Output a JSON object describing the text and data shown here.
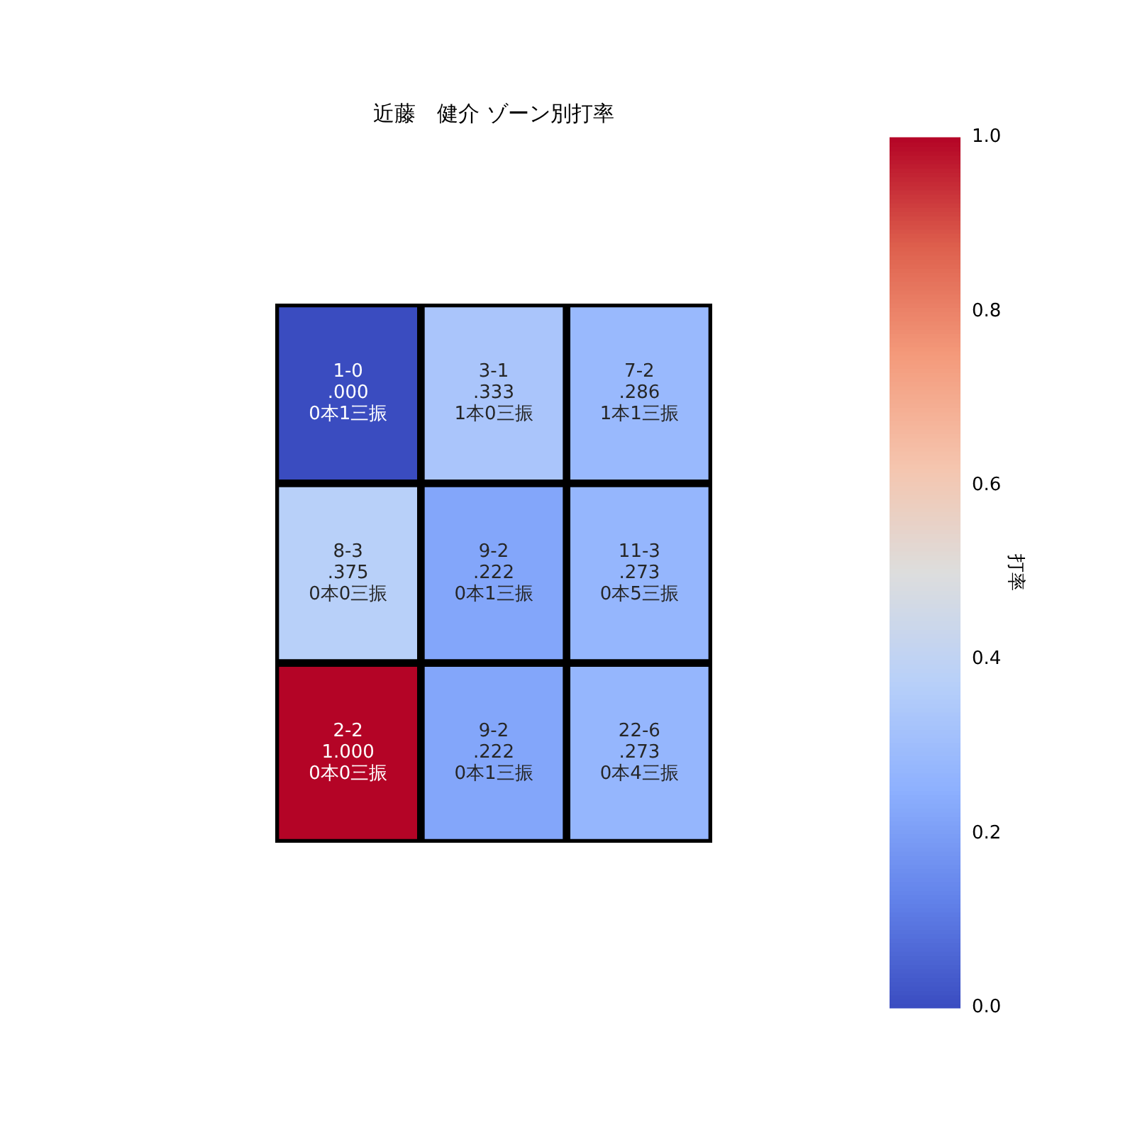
{
  "chart_data": {
    "type": "heatmap",
    "title": "近藤　健介 ゾーン別打率",
    "categories": [
      null,
      null,
      null
    ],
    "y_categories": [
      null,
      null,
      null
    ],
    "cells": [
      [
        0.0,
        0.333,
        0.286
      ],
      [
        0.375,
        0.222,
        0.273
      ],
      [
        1.0,
        0.222,
        0.273
      ]
    ],
    "cell_labels": [
      [
        "1-0\n.000\n0本1三振",
        "3-1\n.333\n1本0三振",
        "7-2\n.286\n1本1三振"
      ],
      [
        "8-3\n.375\n0本0三振",
        "9-2\n.222\n0本1三振",
        "11-3\n.273\n0本5三振"
      ],
      [
        "2-2\n1.000\n0本0三振",
        "9-2\n.222\n0本1三振",
        "22-6\n.273\n0本4三振"
      ]
    ],
    "clim": [
      0,
      1
    ],
    "cticks": [
      {
        "value": 0,
        "label": "0.0"
      },
      {
        "value": 0.2,
        "label": "0.2"
      },
      {
        "value": 0.4,
        "label": "0.4"
      },
      {
        "value": 0.6,
        "label": "0.6"
      },
      {
        "value": 0.8,
        "label": "0.8"
      },
      {
        "value": 1,
        "label": "1.0"
      }
    ],
    "clabel": "打率"
  }
}
